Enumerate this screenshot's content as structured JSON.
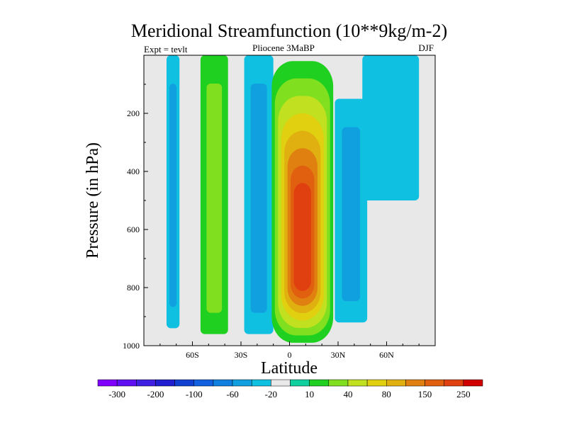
{
  "chart_data": {
    "type": "heatmap",
    "title": "Meridional Streamfunction (10**9kg/m-2)",
    "subtitle_left": "Expt = tevlt",
    "subtitle_center": "Pliocene   3MaBP",
    "subtitle_right": "DJF",
    "xlabel": "Latitude",
    "ylabel": "Pressure (in hPa)",
    "xlim": [
      -90,
      90
    ],
    "ylim": [
      1000,
      0
    ],
    "x_ticks": [
      -60,
      -30,
      0,
      30,
      60
    ],
    "x_tick_labels": [
      "60S",
      "30S",
      "0",
      "30N",
      "60N"
    ],
    "y_ticks": [
      200,
      400,
      600,
      800,
      1000
    ],
    "y_tick_labels": [
      "200",
      "400",
      "600",
      "800",
      "1000"
    ],
    "colorbar": {
      "colors": [
        "#8000ff",
        "#6010f0",
        "#4020e0",
        "#2020d0",
        "#1040d0",
        "#1060e0",
        "#1080e0",
        "#10a0e0",
        "#10c0e0",
        "#e8e8e8",
        "#10d0a0",
        "#20d020",
        "#80e020",
        "#c0e020",
        "#e0d010",
        "#e0b010",
        "#e08010",
        "#e06010",
        "#e04010",
        "#d00000"
      ],
      "labels": [
        "-300",
        "-200",
        "-100",
        "-60",
        "-20",
        "10",
        "40",
        "80",
        "150",
        "250"
      ]
    },
    "features": [
      {
        "name": "cell-60S",
        "kind": "band",
        "lat": [
          -76,
          -68
        ],
        "p": [
          0,
          940
        ],
        "levels": [
          -10,
          -20
        ]
      },
      {
        "name": "cell-45S",
        "kind": "band",
        "lat": [
          -55,
          -38
        ],
        "p": [
          0,
          960
        ],
        "levels": [
          20,
          40
        ]
      },
      {
        "name": "cell-30S",
        "kind": "band",
        "lat": [
          -28,
          -10
        ],
        "p": [
          0,
          960
        ],
        "levels": [
          -10,
          -20
        ]
      },
      {
        "name": "hadley-cell",
        "kind": "cell",
        "center_lat": 8,
        "center_p": 620,
        "lat": [
          -10,
          28
        ],
        "p": [
          20,
          990
        ],
        "levels": [
          20,
          40,
          60,
          80,
          100,
          150,
          200,
          250
        ]
      },
      {
        "name": "cell-40N",
        "kind": "band",
        "lat": [
          28,
          48
        ],
        "p": [
          150,
          920
        ],
        "levels": [
          -10,
          -20
        ]
      },
      {
        "name": "polar-north",
        "kind": "band",
        "lat": [
          45,
          80
        ],
        "p": [
          0,
          500
        ],
        "levels": [
          -10
        ]
      }
    ]
  }
}
